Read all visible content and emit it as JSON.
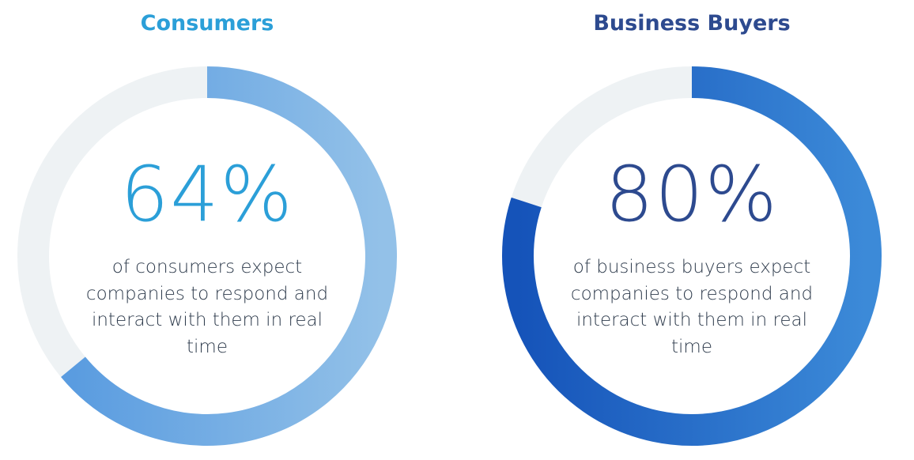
{
  "chart_data": [
    {
      "type": "donut",
      "title": "Consumers",
      "values": [
        64
      ],
      "value_labels": [
        "64%"
      ],
      "text": "of consumers expect companies to respond and interact with them in real time",
      "title_color": "#2b9fd8",
      "colors": [
        "#5a9ce0",
        "#93c1e8"
      ],
      "track_color": "#eef2f4"
    },
    {
      "type": "donut",
      "title": "Business Buyers",
      "values": [
        80
      ],
      "value_labels": [
        "80%"
      ],
      "text": "of business buyers expect companies to respond and interact with them in real time",
      "title_color": "#2d4a8f",
      "colors": [
        "#1553b9",
        "#3c8ad8"
      ],
      "track_color": "#eef2f4"
    }
  ]
}
